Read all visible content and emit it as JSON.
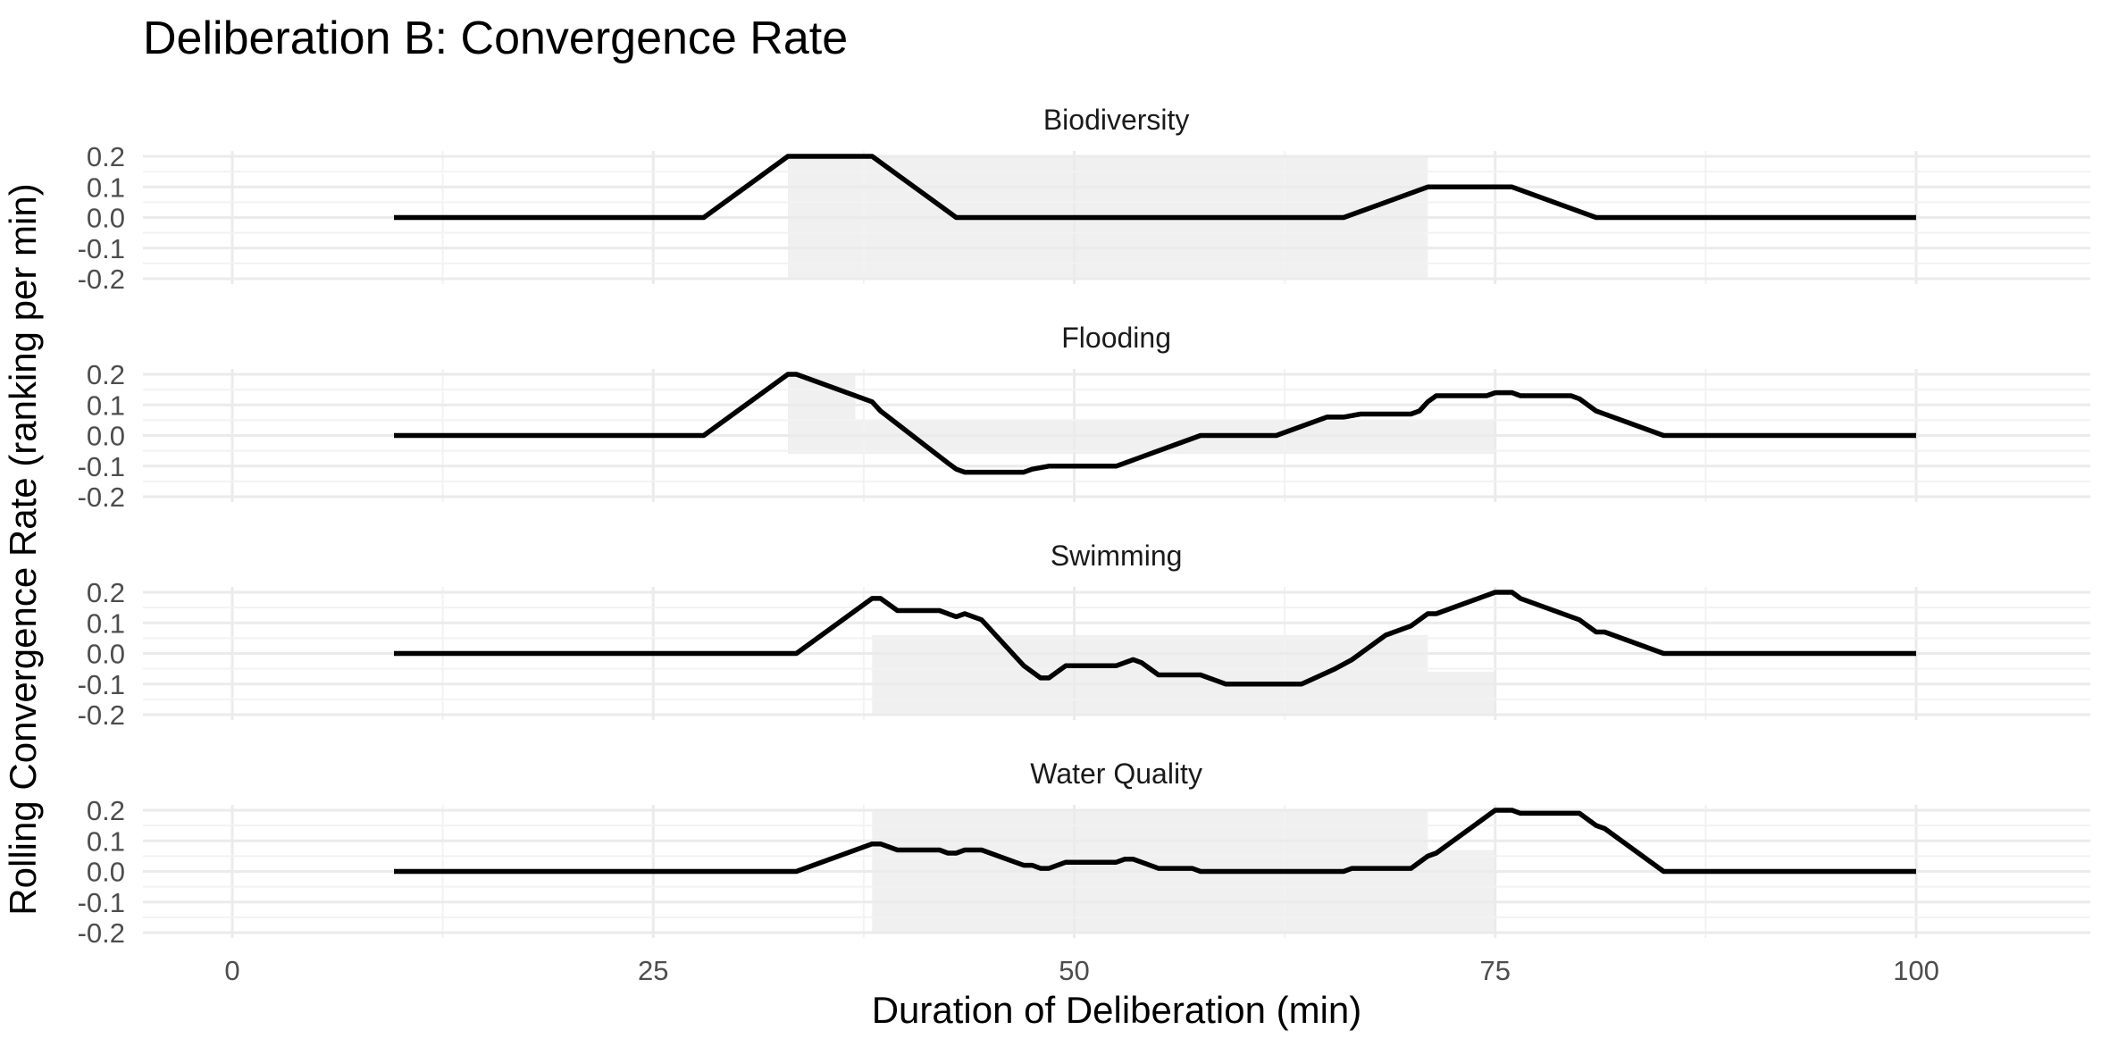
{
  "chart_data": {
    "type": "line",
    "title": "Deliberation B: Convergence Rate",
    "xlabel": "Duration of Deliberation (min)",
    "ylabel": "Rolling Convergence Rate (ranking per min)",
    "xlim": [
      -5,
      110
    ],
    "ylim": [
      -0.2,
      0.2
    ],
    "x_ticks": [
      0,
      25,
      50,
      75,
      100
    ],
    "x_tick_labels": [
      "0",
      "25",
      "50",
      "75",
      "100"
    ],
    "y_ticks": [
      -0.2,
      -0.1,
      0.0,
      0.1,
      0.2
    ],
    "y_tick_labels": [
      "-0.2",
      "-0.1",
      "0.0",
      "0.1",
      "0.2"
    ],
    "grid": true,
    "line_color": "#000000",
    "band_color": "#f0f0f0",
    "panels": [
      {
        "name": "Biodiversity",
        "points": [
          [
            9.6,
            0
          ],
          [
            28,
            0
          ],
          [
            33,
            0.2
          ],
          [
            38,
            0.2
          ],
          [
            43,
            0
          ],
          [
            66,
            0
          ],
          [
            71,
            0.1
          ],
          [
            76,
            0.1
          ],
          [
            81,
            0
          ],
          [
            100,
            0
          ]
        ],
        "band": [
          [
            0,
            -0.2
          ],
          [
            33,
            -0.2
          ],
          [
            33,
            0.2
          ],
          [
            37,
            0.2
          ],
          [
            37,
            0.2
          ],
          [
            71,
            0.2
          ],
          [
            71,
            -0.2
          ],
          [
            0,
            -0.2
          ]
        ]
      },
      {
        "name": "Flooding",
        "points": [
          [
            9.6,
            0
          ],
          [
            28,
            0
          ],
          [
            33,
            0.2
          ],
          [
            33.5,
            0.2
          ],
          [
            38,
            0.11
          ],
          [
            38.5,
            0.08
          ],
          [
            42.5,
            -0.09
          ],
          [
            43,
            -0.11
          ],
          [
            43.5,
            -0.12
          ],
          [
            47,
            -0.12
          ],
          [
            47.5,
            -0.11
          ],
          [
            48.5,
            -0.1
          ],
          [
            52.5,
            -0.1
          ],
          [
            57.5,
            0
          ],
          [
            62,
            0
          ],
          [
            65,
            0.06
          ],
          [
            66,
            0.06
          ],
          [
            67,
            0.07
          ],
          [
            70,
            0.07
          ],
          [
            70.5,
            0.08
          ],
          [
            71,
            0.11
          ],
          [
            71.5,
            0.13
          ],
          [
            74.5,
            0.13
          ],
          [
            75,
            0.14
          ],
          [
            76,
            0.14
          ],
          [
            76.5,
            0.13
          ],
          [
            79.5,
            0.13
          ],
          [
            80,
            0.12
          ],
          [
            81,
            0.08
          ],
          [
            85,
            0
          ],
          [
            100,
            0
          ]
        ],
        "band": [
          [
            0,
            -0.06
          ],
          [
            33,
            -0.06
          ],
          [
            33,
            0.2
          ],
          [
            37,
            0.2
          ],
          [
            37,
            0.05
          ],
          [
            71,
            0.05
          ],
          [
            71,
            0.05
          ],
          [
            75,
            0.05
          ],
          [
            75,
            -0.06
          ],
          [
            0,
            -0.06
          ]
        ]
      },
      {
        "name": "Swimming",
        "points": [
          [
            9.6,
            0
          ],
          [
            33.5,
            0
          ],
          [
            38,
            0.18
          ],
          [
            38.5,
            0.18
          ],
          [
            39.5,
            0.14
          ],
          [
            42,
            0.14
          ],
          [
            43,
            0.12
          ],
          [
            43.5,
            0.13
          ],
          [
            44.5,
            0.11
          ],
          [
            47,
            -0.04
          ],
          [
            48,
            -0.08
          ],
          [
            48.5,
            -0.08
          ],
          [
            49.5,
            -0.04
          ],
          [
            52.5,
            -0.04
          ],
          [
            53,
            -0.03
          ],
          [
            53.5,
            -0.02
          ],
          [
            54,
            -0.03
          ],
          [
            54.5,
            -0.05
          ],
          [
            55,
            -0.07
          ],
          [
            57.5,
            -0.07
          ],
          [
            58.5,
            -0.09
          ],
          [
            59,
            -0.1
          ],
          [
            63.5,
            -0.1
          ],
          [
            65.5,
            -0.05
          ],
          [
            66.5,
            -0.02
          ],
          [
            68.5,
            0.06
          ],
          [
            70,
            0.09
          ],
          [
            71,
            0.13
          ],
          [
            71.5,
            0.13
          ],
          [
            75,
            0.2
          ],
          [
            76,
            0.2
          ],
          [
            76.5,
            0.18
          ],
          [
            80,
            0.11
          ],
          [
            80.5,
            0.09
          ],
          [
            81,
            0.07
          ],
          [
            81.5,
            0.07
          ],
          [
            85,
            0
          ],
          [
            100,
            0
          ]
        ],
        "band": [
          [
            0,
            -0.2
          ],
          [
            38,
            -0.2
          ],
          [
            38,
            0.06
          ],
          [
            71,
            0.06
          ],
          [
            71,
            -0.06
          ],
          [
            75,
            -0.06
          ],
          [
            75,
            -0.2
          ],
          [
            0,
            -0.2
          ]
        ]
      },
      {
        "name": "Water Quality",
        "points": [
          [
            9.6,
            0
          ],
          [
            33.5,
            0
          ],
          [
            38,
            0.09
          ],
          [
            38.5,
            0.09
          ],
          [
            39.5,
            0.07
          ],
          [
            42,
            0.07
          ],
          [
            42.5,
            0.06
          ],
          [
            43,
            0.06
          ],
          [
            43.5,
            0.07
          ],
          [
            44.5,
            0.07
          ],
          [
            47,
            0.02
          ],
          [
            47.5,
            0.02
          ],
          [
            48,
            0.01
          ],
          [
            48.5,
            0.01
          ],
          [
            49.5,
            0.03
          ],
          [
            52.5,
            0.03
          ],
          [
            53,
            0.04
          ],
          [
            53.5,
            0.04
          ],
          [
            54.5,
            0.02
          ],
          [
            55,
            0.01
          ],
          [
            57,
            0.01
          ],
          [
            57.5,
            0
          ],
          [
            66,
            0
          ],
          [
            66.5,
            0.01
          ],
          [
            70,
            0.01
          ],
          [
            71,
            0.05
          ],
          [
            71.5,
            0.06
          ],
          [
            75,
            0.2
          ],
          [
            76,
            0.2
          ],
          [
            76.5,
            0.19
          ],
          [
            80,
            0.19
          ],
          [
            81,
            0.15
          ],
          [
            81.5,
            0.14
          ],
          [
            85,
            0
          ],
          [
            100,
            0
          ]
        ],
        "band": [
          [
            0,
            -0.2
          ],
          [
            38,
            -0.2
          ],
          [
            38,
            0.2
          ],
          [
            71,
            0.2
          ],
          [
            71,
            0.07
          ],
          [
            75,
            0.07
          ],
          [
            75,
            -0.2
          ],
          [
            0,
            -0.2
          ]
        ]
      }
    ]
  }
}
